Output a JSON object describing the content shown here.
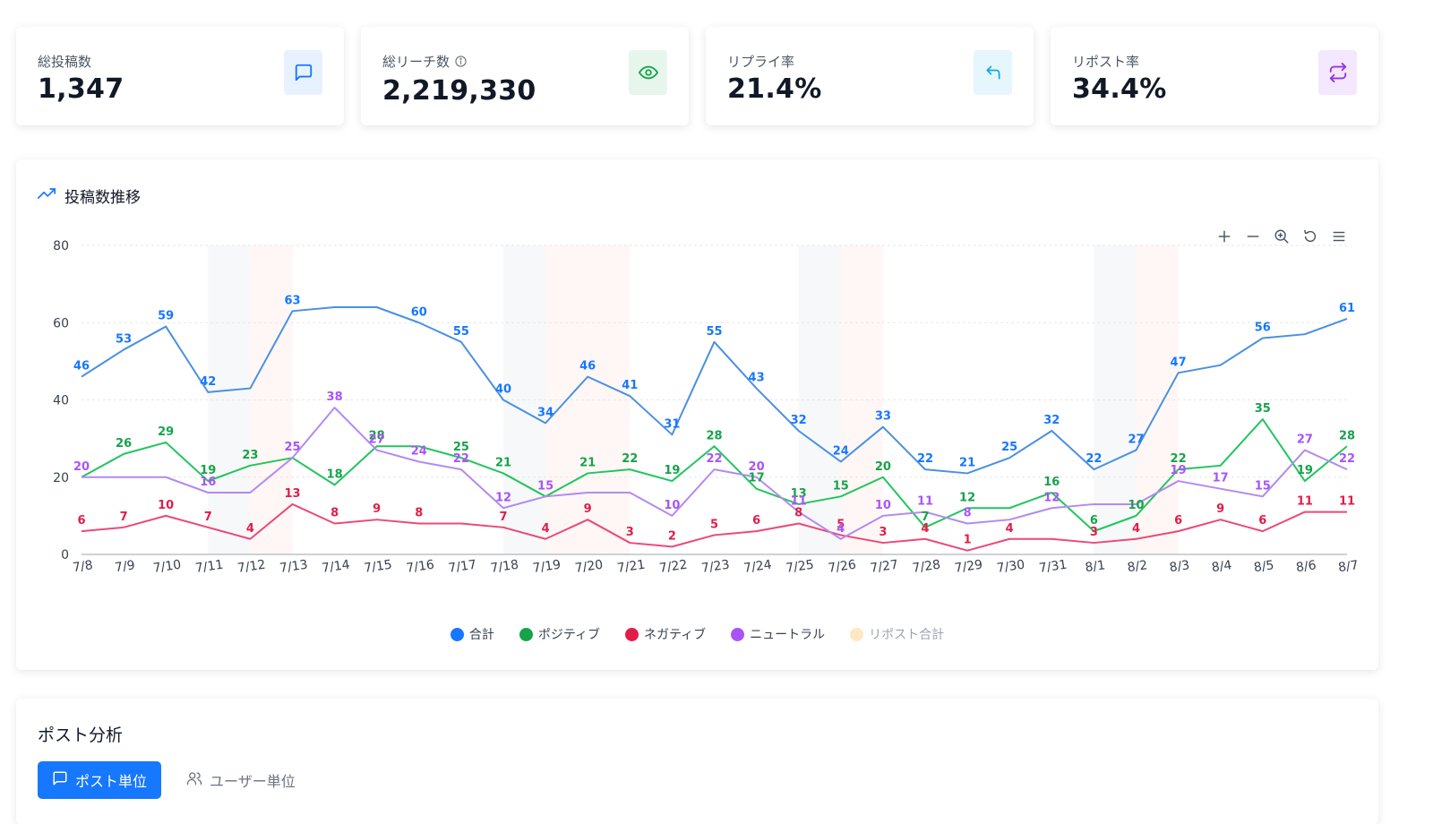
{
  "stats": [
    {
      "label": "総投稿数",
      "value": "1,347",
      "icon": "message-square-icon",
      "accent": "#1677ff",
      "bg": "#e8f1ff",
      "info": false
    },
    {
      "label": "総リーチ数",
      "value": "2,219,330",
      "icon": "eye-icon",
      "accent": "#16a34a",
      "bg": "#e6f6ec",
      "info": true
    },
    {
      "label": "リプライ率",
      "value": "21.4%",
      "icon": "reply-icon",
      "accent": "#0ea5e9",
      "bg": "#e6f6fd",
      "info": false
    },
    {
      "label": "リポスト率",
      "value": "34.4%",
      "icon": "repost-icon",
      "accent": "#9333ea",
      "bg": "#f3e8ff",
      "info": false
    }
  ],
  "chart": {
    "title": "投稿数推移",
    "icon": "trending-up-icon"
  },
  "toolbar": [
    "plus-icon",
    "minus-icon",
    "zoom-in-icon",
    "reset-icon",
    "menu-icon"
  ],
  "legend": [
    {
      "label": "合計",
      "color": "#1677ff",
      "active": true
    },
    {
      "label": "ポジティブ",
      "color": "#16a34a",
      "active": true
    },
    {
      "label": "ネガティブ",
      "color": "#e11d48",
      "active": true
    },
    {
      "label": "ニュートラル",
      "color": "#a855f7",
      "active": true
    },
    {
      "label": "リポスト合計",
      "color": "#fde7c4",
      "active": false
    }
  ],
  "chart_data": {
    "type": "line",
    "title": "投稿数推移",
    "categories": [
      "7/8",
      "7/9",
      "7/10",
      "7/11",
      "7/12",
      "7/13",
      "7/14",
      "7/15",
      "7/16",
      "7/17",
      "7/18",
      "7/19",
      "7/20",
      "7/21",
      "7/22",
      "7/23",
      "7/24",
      "7/25",
      "7/26",
      "7/27",
      "7/28",
      "7/29",
      "7/30",
      "7/31",
      "8/1",
      "8/2",
      "8/3",
      "8/4",
      "8/5",
      "8/6",
      "8/7"
    ],
    "ylim": [
      0,
      80
    ],
    "yticks": [
      0,
      20,
      40,
      60,
      80
    ],
    "grid": true,
    "weekend_shading": [
      [
        "7/11",
        "7/12",
        "7/13"
      ],
      [
        "7/18",
        "7/19",
        "7/20",
        "7/21"
      ],
      [
        "7/25",
        "7/26",
        "7/27"
      ],
      [
        "8/1",
        "8/2",
        "8/3"
      ]
    ],
    "series": [
      {
        "name": "合計",
        "color": "#4a90e2",
        "label_color": "#1677ff",
        "values": [
          46,
          53,
          59,
          42,
          43,
          63,
          64,
          64,
          60,
          55,
          40,
          34,
          46,
          41,
          31,
          55,
          43,
          32,
          24,
          33,
          22,
          21,
          25,
          32,
          22,
          27,
          47,
          49,
          56,
          57,
          61
        ],
        "labels": [
          46,
          53,
          59,
          42,
          null,
          63,
          null,
          null,
          60,
          55,
          40,
          34,
          46,
          41,
          31,
          55,
          43,
          32,
          24,
          33,
          22,
          21,
          25,
          32,
          22,
          27,
          47,
          null,
          56,
          null,
          61
        ]
      },
      {
        "name": "ポジティブ",
        "color": "#22c55e",
        "label_color": "#16a34a",
        "values": [
          20,
          26,
          29,
          19,
          23,
          25,
          18,
          28,
          28,
          25,
          21,
          15,
          21,
          22,
          19,
          28,
          17,
          13,
          15,
          20,
          7,
          12,
          12,
          16,
          6,
          10,
          22,
          23,
          35,
          19,
          28
        ],
        "labels": [
          null,
          26,
          29,
          19,
          23,
          null,
          18,
          28,
          null,
          25,
          21,
          null,
          21,
          22,
          19,
          28,
          17,
          13,
          15,
          20,
          7,
          12,
          null,
          16,
          6,
          10,
          22,
          null,
          35,
          19,
          28
        ]
      },
      {
        "name": "ネガティブ",
        "color": "#ec4878",
        "label_color": "#e11d48",
        "values": [
          6,
          7,
          10,
          7,
          4,
          13,
          8,
          9,
          8,
          8,
          7,
          4,
          9,
          3,
          2,
          5,
          6,
          8,
          5,
          3,
          4,
          1,
          4,
          4,
          3,
          4,
          6,
          9,
          6,
          11,
          11
        ],
        "labels": [
          6,
          7,
          10,
          7,
          4,
          13,
          8,
          9,
          8,
          null,
          7,
          4,
          9,
          3,
          2,
          5,
          6,
          8,
          5,
          3,
          4,
          1,
          4,
          null,
          3,
          4,
          6,
          9,
          6,
          11,
          11
        ]
      },
      {
        "name": "ニュートラル",
        "color": "#b38af0",
        "label_color": "#a855f7",
        "values": [
          20,
          20,
          20,
          16,
          16,
          25,
          38,
          27,
          24,
          22,
          12,
          15,
          16,
          16,
          10,
          22,
          20,
          11,
          4,
          10,
          11,
          8,
          9,
          12,
          13,
          13,
          19,
          17,
          15,
          27,
          22
        ],
        "labels": [
          20,
          null,
          null,
          16,
          null,
          25,
          38,
          27,
          24,
          22,
          12,
          15,
          null,
          null,
          10,
          22,
          20,
          11,
          4,
          10,
          11,
          8,
          null,
          12,
          null,
          null,
          19,
          17,
          15,
          27,
          22
        ]
      }
    ]
  },
  "analysis": {
    "title": "ポスト分析",
    "tabs": [
      {
        "label": "ポスト単位",
        "icon": "message-square-icon",
        "active": true
      },
      {
        "label": "ユーザー単位",
        "icon": "users-icon",
        "active": false
      }
    ]
  }
}
